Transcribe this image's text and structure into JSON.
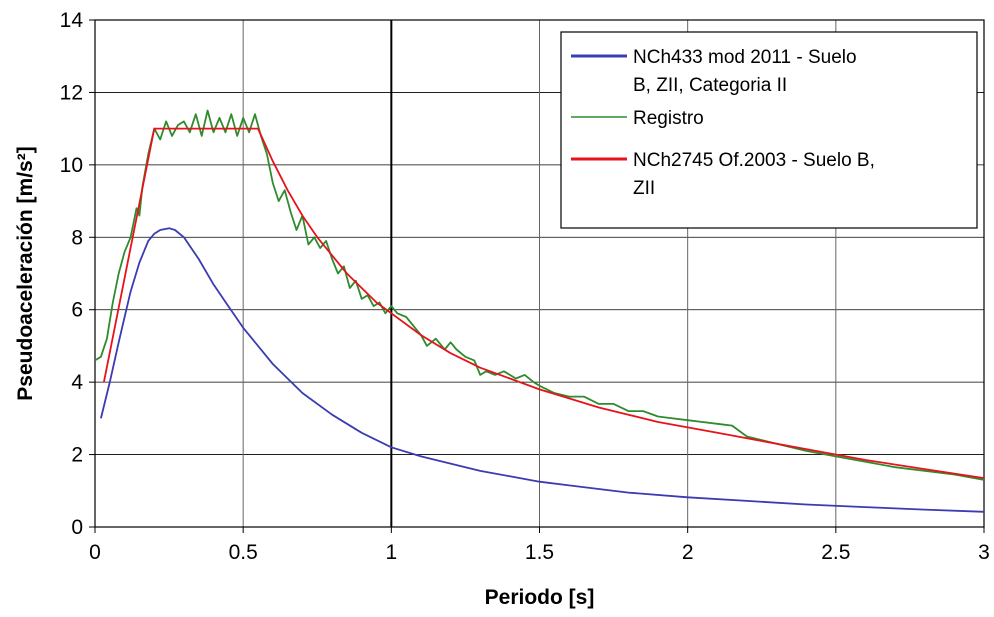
{
  "chart_data": {
    "type": "line",
    "title": "",
    "xlabel": "Periodo [s]",
    "ylabel": "Pseudoaceleración [m/s²]",
    "xlim": [
      0,
      3
    ],
    "ylim": [
      0,
      14
    ],
    "xticks": [
      0,
      0.5,
      1,
      1.5,
      2,
      2.5,
      3
    ],
    "xtick_labels": [
      "0",
      "0.5",
      "1",
      "1.5",
      "2",
      "2.5",
      "3"
    ],
    "yticks": [
      0,
      2,
      4,
      6,
      8,
      10,
      12,
      14
    ],
    "ytick_labels": [
      "0",
      "2",
      "4",
      "6",
      "8",
      "10",
      "12",
      "14"
    ],
    "grid": true,
    "highlight_x": 1,
    "legend_position": "top-right",
    "series": [
      {
        "name": "NCh433 mod 2011 - Suelo B, ZII, Categoria II",
        "legend_lines": [
          "NCh433 mod 2011 - Suelo",
          "B, ZII, Categoria II"
        ],
        "color": "#3b3bb3",
        "x": [
          0.02,
          0.05,
          0.08,
          0.1,
          0.12,
          0.15,
          0.18,
          0.2,
          0.22,
          0.25,
          0.27,
          0.3,
          0.35,
          0.4,
          0.45,
          0.5,
          0.6,
          0.7,
          0.8,
          0.9,
          1.0,
          1.1,
          1.2,
          1.3,
          1.4,
          1.5,
          1.6,
          1.8,
          2.0,
          2.2,
          2.4,
          2.6,
          2.8,
          3.0
        ],
        "y": [
          3.0,
          4.0,
          5.1,
          5.8,
          6.5,
          7.3,
          7.9,
          8.1,
          8.2,
          8.25,
          8.2,
          8.0,
          7.4,
          6.7,
          6.1,
          5.5,
          4.5,
          3.7,
          3.1,
          2.6,
          2.2,
          1.95,
          1.75,
          1.55,
          1.4,
          1.25,
          1.15,
          0.95,
          0.82,
          0.72,
          0.62,
          0.55,
          0.48,
          0.42
        ]
      },
      {
        "name": "Registro",
        "legend_lines": [
          "Registro"
        ],
        "color": "#2e8b2e",
        "x": [
          0.0,
          0.02,
          0.04,
          0.06,
          0.08,
          0.1,
          0.12,
          0.14,
          0.15,
          0.16,
          0.18,
          0.2,
          0.22,
          0.24,
          0.26,
          0.28,
          0.3,
          0.32,
          0.34,
          0.36,
          0.38,
          0.4,
          0.42,
          0.44,
          0.46,
          0.48,
          0.5,
          0.52,
          0.54,
          0.56,
          0.58,
          0.6,
          0.62,
          0.64,
          0.66,
          0.68,
          0.7,
          0.72,
          0.74,
          0.76,
          0.78,
          0.8,
          0.82,
          0.84,
          0.86,
          0.88,
          0.9,
          0.92,
          0.94,
          0.96,
          0.98,
          1.0,
          1.02,
          1.05,
          1.08,
          1.1,
          1.12,
          1.15,
          1.18,
          1.2,
          1.22,
          1.25,
          1.28,
          1.3,
          1.32,
          1.35,
          1.38,
          1.4,
          1.42,
          1.45,
          1.48,
          1.5,
          1.55,
          1.6,
          1.65,
          1.7,
          1.75,
          1.8,
          1.85,
          1.9,
          1.95,
          2.0,
          2.05,
          2.1,
          2.15,
          2.2,
          2.3,
          2.4,
          2.5,
          2.6,
          2.7,
          2.8,
          2.9,
          3.0
        ],
        "y": [
          4.6,
          4.7,
          5.2,
          6.2,
          7.0,
          7.6,
          8.0,
          8.8,
          8.6,
          9.4,
          10.3,
          11.0,
          10.7,
          11.2,
          10.8,
          11.1,
          11.2,
          10.9,
          11.4,
          10.8,
          11.5,
          10.9,
          11.3,
          10.9,
          11.4,
          10.8,
          11.3,
          10.9,
          11.4,
          10.8,
          10.3,
          9.5,
          9.0,
          9.3,
          8.7,
          8.2,
          8.6,
          7.8,
          8.0,
          7.7,
          7.9,
          7.4,
          7.0,
          7.2,
          6.6,
          6.8,
          6.3,
          6.4,
          6.1,
          6.2,
          5.9,
          6.1,
          5.9,
          5.8,
          5.5,
          5.3,
          5.0,
          5.2,
          4.9,
          5.1,
          4.9,
          4.7,
          4.6,
          4.2,
          4.3,
          4.2,
          4.3,
          4.2,
          4.1,
          4.2,
          4.0,
          3.9,
          3.7,
          3.6,
          3.6,
          3.4,
          3.4,
          3.2,
          3.2,
          3.05,
          3.0,
          2.95,
          2.9,
          2.85,
          2.8,
          2.5,
          2.3,
          2.1,
          1.95,
          1.8,
          1.65,
          1.55,
          1.45,
          1.3
        ]
      },
      {
        "name": "NCh2745 Of.2003 - Suelo B, ZII",
        "legend_lines": [
          "NCh2745 Of.2003 - Suelo B,",
          "ZII"
        ],
        "color": "#e8121a",
        "x": [
          0.03,
          0.2,
          0.55,
          0.6,
          0.65,
          0.7,
          0.75,
          0.8,
          0.85,
          0.9,
          0.95,
          1.0,
          1.1,
          1.2,
          1.3,
          1.4,
          1.5,
          1.6,
          1.7,
          1.8,
          1.9,
          2.0,
          2.1,
          2.2,
          2.4,
          2.6,
          2.8,
          3.0
        ],
        "y": [
          4.0,
          11.0,
          11.0,
          10.1,
          9.3,
          8.6,
          8.0,
          7.5,
          7.0,
          6.6,
          6.2,
          5.9,
          5.3,
          4.8,
          4.4,
          4.1,
          3.8,
          3.55,
          3.3,
          3.1,
          2.9,
          2.75,
          2.6,
          2.45,
          2.15,
          1.85,
          1.6,
          1.35
        ]
      }
    ]
  }
}
